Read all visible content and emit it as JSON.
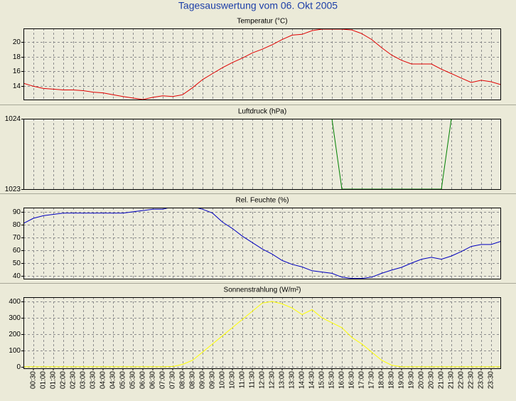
{
  "title": "Tagesauswertung vom 06. Okt 2005",
  "chart_data": [
    {
      "type": "line",
      "title": "Temperatur (°C)",
      "color": "#e00000",
      "grid": true,
      "x": [
        0,
        0.5,
        1,
        1.5,
        2,
        2.5,
        3,
        3.5,
        4,
        4.5,
        5,
        5.5,
        6,
        6.5,
        7,
        7.5,
        8,
        8.5,
        9,
        9.5,
        10,
        10.5,
        11,
        11.5,
        12,
        12.5,
        13,
        13.5,
        14,
        14.5,
        15,
        15.5,
        16,
        16.5,
        17,
        17.5,
        18,
        18.5,
        19,
        19.5,
        20,
        20.5,
        21,
        21.5,
        22,
        22.5,
        23,
        23.5,
        24
      ],
      "values": [
        14.4,
        14.0,
        13.7,
        13.6,
        13.5,
        13.5,
        13.4,
        13.2,
        13.1,
        12.85,
        12.6,
        12.4,
        12.2,
        12.5,
        12.7,
        12.6,
        12.85,
        13.8,
        14.9,
        15.7,
        16.5,
        17.2,
        17.8,
        18.5,
        19.0,
        19.6,
        20.3,
        20.9,
        21.0,
        21.5,
        21.7,
        21.7,
        21.7,
        21.6,
        21.1,
        20.3,
        19.2,
        18.2,
        17.5,
        17.0,
        17.0,
        17.0,
        16.3,
        15.7,
        15.1,
        14.5,
        14.8,
        14.6,
        14.2
      ],
      "xlim": [
        0,
        24
      ],
      "ylim": [
        12.2,
        21.8
      ],
      "yticks": [
        14,
        16,
        18,
        20
      ]
    },
    {
      "type": "line",
      "title": "Luftdruck (hPa)",
      "color": "#008000",
      "grid": true,
      "x": [
        0,
        0.5,
        1,
        1.5,
        2,
        2.5,
        3,
        3.5,
        4,
        4.5,
        5,
        5.5,
        6,
        6.5,
        7,
        7.5,
        8,
        8.5,
        9,
        9.5,
        10,
        10.5,
        11,
        11.5,
        12,
        12.5,
        13,
        13.5,
        14,
        14.5,
        15,
        15.5,
        16,
        16.5,
        17,
        17.5,
        18,
        18.5,
        19,
        19.5,
        20,
        20.5,
        21,
        21.5,
        22,
        22.5,
        23,
        23.5,
        24
      ],
      "values": [
        1024,
        1024,
        1024,
        1024,
        1024,
        1024,
        1024,
        1024,
        1024,
        1024,
        1024,
        1024,
        1024,
        1024,
        1024,
        1024,
        1024,
        1024,
        1024,
        1024,
        1024,
        1024,
        1024,
        1024,
        1024,
        1024,
        1024,
        1024,
        1024,
        1024,
        1024,
        1024,
        1023,
        1023,
        1023,
        1023,
        1023,
        1023,
        1023,
        1023,
        1023,
        1023,
        1023,
        1024,
        1024,
        1024,
        1024,
        1024,
        1024
      ],
      "xlim": [
        0,
        24
      ],
      "ylim": [
        1023,
        1024
      ],
      "yticks": [
        1023,
        1024
      ]
    },
    {
      "type": "line",
      "title": "Rel. Feuchte (%)",
      "color": "#0000c0",
      "grid": true,
      "x": [
        0,
        0.5,
        1,
        1.5,
        2,
        2.5,
        3,
        3.5,
        4,
        4.5,
        5,
        5.5,
        6,
        6.5,
        7,
        7.5,
        8,
        8.5,
        9,
        9.5,
        10,
        10.5,
        11,
        11.5,
        12,
        12.5,
        13,
        13.5,
        14,
        14.5,
        15,
        15.5,
        16,
        16.5,
        17,
        17.5,
        18,
        18.5,
        19,
        19.5,
        20,
        20.5,
        21,
        21.5,
        22,
        22.5,
        23,
        23.5,
        24
      ],
      "values": [
        81,
        85,
        87,
        88,
        89,
        89,
        89,
        89,
        89,
        89,
        89,
        90,
        91,
        92,
        92,
        94,
        94,
        94,
        92,
        89,
        82,
        77,
        71,
        66,
        61,
        57,
        52,
        49,
        47,
        44,
        43,
        42,
        39,
        38,
        38,
        39,
        42,
        44.5,
        46.7,
        50,
        53,
        54.5,
        53,
        55.5,
        59,
        63,
        64.5,
        64.5,
        67
      ],
      "xlim": [
        0,
        24
      ],
      "ylim": [
        37.8,
        93.3
      ],
      "yticks": [
        40,
        50,
        60,
        70,
        80,
        90
      ]
    },
    {
      "type": "line",
      "title": "Sonnenstrahlung (W/m²)",
      "color": "#ffff00",
      "grid": true,
      "x": [
        0,
        0.5,
        1,
        1.5,
        2,
        2.5,
        3,
        3.5,
        4,
        4.5,
        5,
        5.5,
        6,
        6.5,
        7,
        7.5,
        8,
        8.5,
        9,
        9.5,
        10,
        10.5,
        11,
        11.5,
        12,
        12.5,
        13,
        13.5,
        14,
        14.5,
        15,
        15.5,
        16,
        16.5,
        17,
        17.5,
        18,
        18.5,
        19,
        19.5,
        20,
        20.5,
        21,
        21.5,
        22,
        22.5,
        23,
        23.5,
        24
      ],
      "values": [
        0,
        0,
        0,
        0,
        0,
        0,
        0,
        0,
        0,
        0,
        0,
        0,
        0,
        0,
        0,
        2,
        15,
        40,
        90,
        140,
        190,
        240,
        290,
        340,
        390,
        400,
        385,
        360,
        320,
        350,
        300,
        270,
        240,
        180,
        140,
        90,
        40,
        10,
        0,
        0,
        0,
        0,
        0,
        0,
        0,
        0,
        0,
        0,
        0
      ],
      "xlim": [
        0,
        24
      ],
      "ylim": [
        -9,
        426
      ],
      "yticks": [
        0,
        100,
        200,
        300,
        400
      ],
      "xticks": [
        {
          "value": 0.5,
          "label": "00:30"
        },
        {
          "value": 1,
          "label": "01:00"
        },
        {
          "value": 1.5,
          "label": "01:30"
        },
        {
          "value": 2,
          "label": "02:00"
        },
        {
          "value": 2.5,
          "label": "02:30"
        },
        {
          "value": 3,
          "label": "03:00"
        },
        {
          "value": 3.5,
          "label": "03:30"
        },
        {
          "value": 4,
          "label": "04:00"
        },
        {
          "value": 4.5,
          "label": "04:30"
        },
        {
          "value": 5,
          "label": "05:00"
        },
        {
          "value": 5.5,
          "label": "05:30"
        },
        {
          "value": 6,
          "label": "06:00"
        },
        {
          "value": 6.5,
          "label": "06:30"
        },
        {
          "value": 7,
          "label": "07:00"
        },
        {
          "value": 7.5,
          "label": "07:30"
        },
        {
          "value": 8,
          "label": "08:00"
        },
        {
          "value": 8.5,
          "label": "08:30"
        },
        {
          "value": 9,
          "label": "09:00"
        },
        {
          "value": 9.5,
          "label": "09:30"
        },
        {
          "value": 10,
          "label": "10:00"
        },
        {
          "value": 10.5,
          "label": "10:30"
        },
        {
          "value": 11,
          "label": "11:00"
        },
        {
          "value": 11.5,
          "label": "11:30"
        },
        {
          "value": 12,
          "label": "12:00"
        },
        {
          "value": 12.5,
          "label": "12:30"
        },
        {
          "value": 13,
          "label": "13:00"
        },
        {
          "value": 13.5,
          "label": "13:30"
        },
        {
          "value": 14,
          "label": "14:00"
        },
        {
          "value": 14.5,
          "label": "14:30"
        },
        {
          "value": 15,
          "label": "15:00"
        },
        {
          "value": 15.5,
          "label": "15:30"
        },
        {
          "value": 16,
          "label": "16:00"
        },
        {
          "value": 16.5,
          "label": "16:30"
        },
        {
          "value": 17,
          "label": "17:00"
        },
        {
          "value": 17.5,
          "label": "17:30"
        },
        {
          "value": 18,
          "label": "18:00"
        },
        {
          "value": 18.5,
          "label": "18:30"
        },
        {
          "value": 19,
          "label": "19:00"
        },
        {
          "value": 19.5,
          "label": "19:30"
        },
        {
          "value": 20,
          "label": "20:00"
        },
        {
          "value": 20.5,
          "label": "20:30"
        },
        {
          "value": 21,
          "label": "21:00"
        },
        {
          "value": 21.5,
          "label": "21:30"
        },
        {
          "value": 22,
          "label": "22:00"
        },
        {
          "value": 22.5,
          "label": "22:30"
        },
        {
          "value": 23,
          "label": "23:00"
        },
        {
          "value": 23.5,
          "label": "23:30"
        }
      ]
    }
  ]
}
